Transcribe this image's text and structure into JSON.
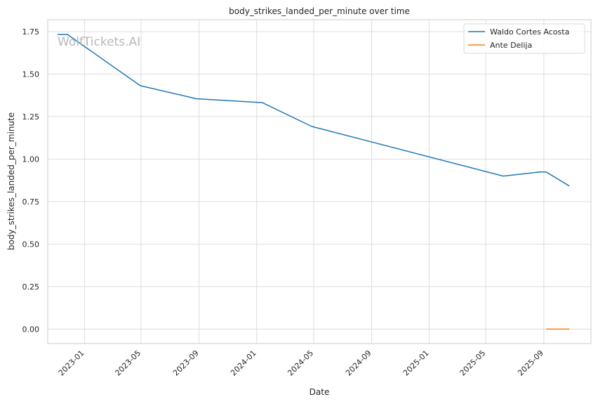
{
  "chart_data": {
    "type": "line",
    "title": "body_strikes_landed_per_minute over time",
    "xlabel": "Date",
    "ylabel": "body_strikes_landed_per_minute",
    "watermark": "WolfTickets.AI",
    "legend_position": "top-right",
    "grid": true,
    "xlim": [
      "2022-10-15",
      "2025-12-10"
    ],
    "ylim": [
      -0.085,
      1.82
    ],
    "x_ticks": [
      "2023-01",
      "2023-05",
      "2023-09",
      "2024-01",
      "2024-05",
      "2024-09",
      "2025-01",
      "2025-05",
      "2025-09"
    ],
    "y_ticks": [
      "0.00",
      "0.25",
      "0.50",
      "0.75",
      "1.00",
      "1.25",
      "1.50",
      "1.75"
    ],
    "series": [
      {
        "name": "Waldo Cortes Acosta",
        "color": "#1f77b4",
        "points": [
          {
            "x": "2022-11-05",
            "y": 1.733
          },
          {
            "x": "2022-11-26",
            "y": 1.733
          },
          {
            "x": "2023-04-29",
            "y": 1.432
          },
          {
            "x": "2023-08-26",
            "y": 1.355
          },
          {
            "x": "2024-01-13",
            "y": 1.332
          },
          {
            "x": "2024-04-27",
            "y": 1.192
          },
          {
            "x": "2025-06-07",
            "y": 0.9
          },
          {
            "x": "2025-08-23",
            "y": 0.924
          },
          {
            "x": "2025-09-06",
            "y": 0.924
          },
          {
            "x": "2025-10-25",
            "y": 0.842
          }
        ]
      },
      {
        "name": "Ante Delija",
        "color": "#ff7f0e",
        "points": [
          {
            "x": "2025-09-06",
            "y": 0.0
          },
          {
            "x": "2025-10-25",
            "y": 0.0
          }
        ]
      }
    ]
  }
}
